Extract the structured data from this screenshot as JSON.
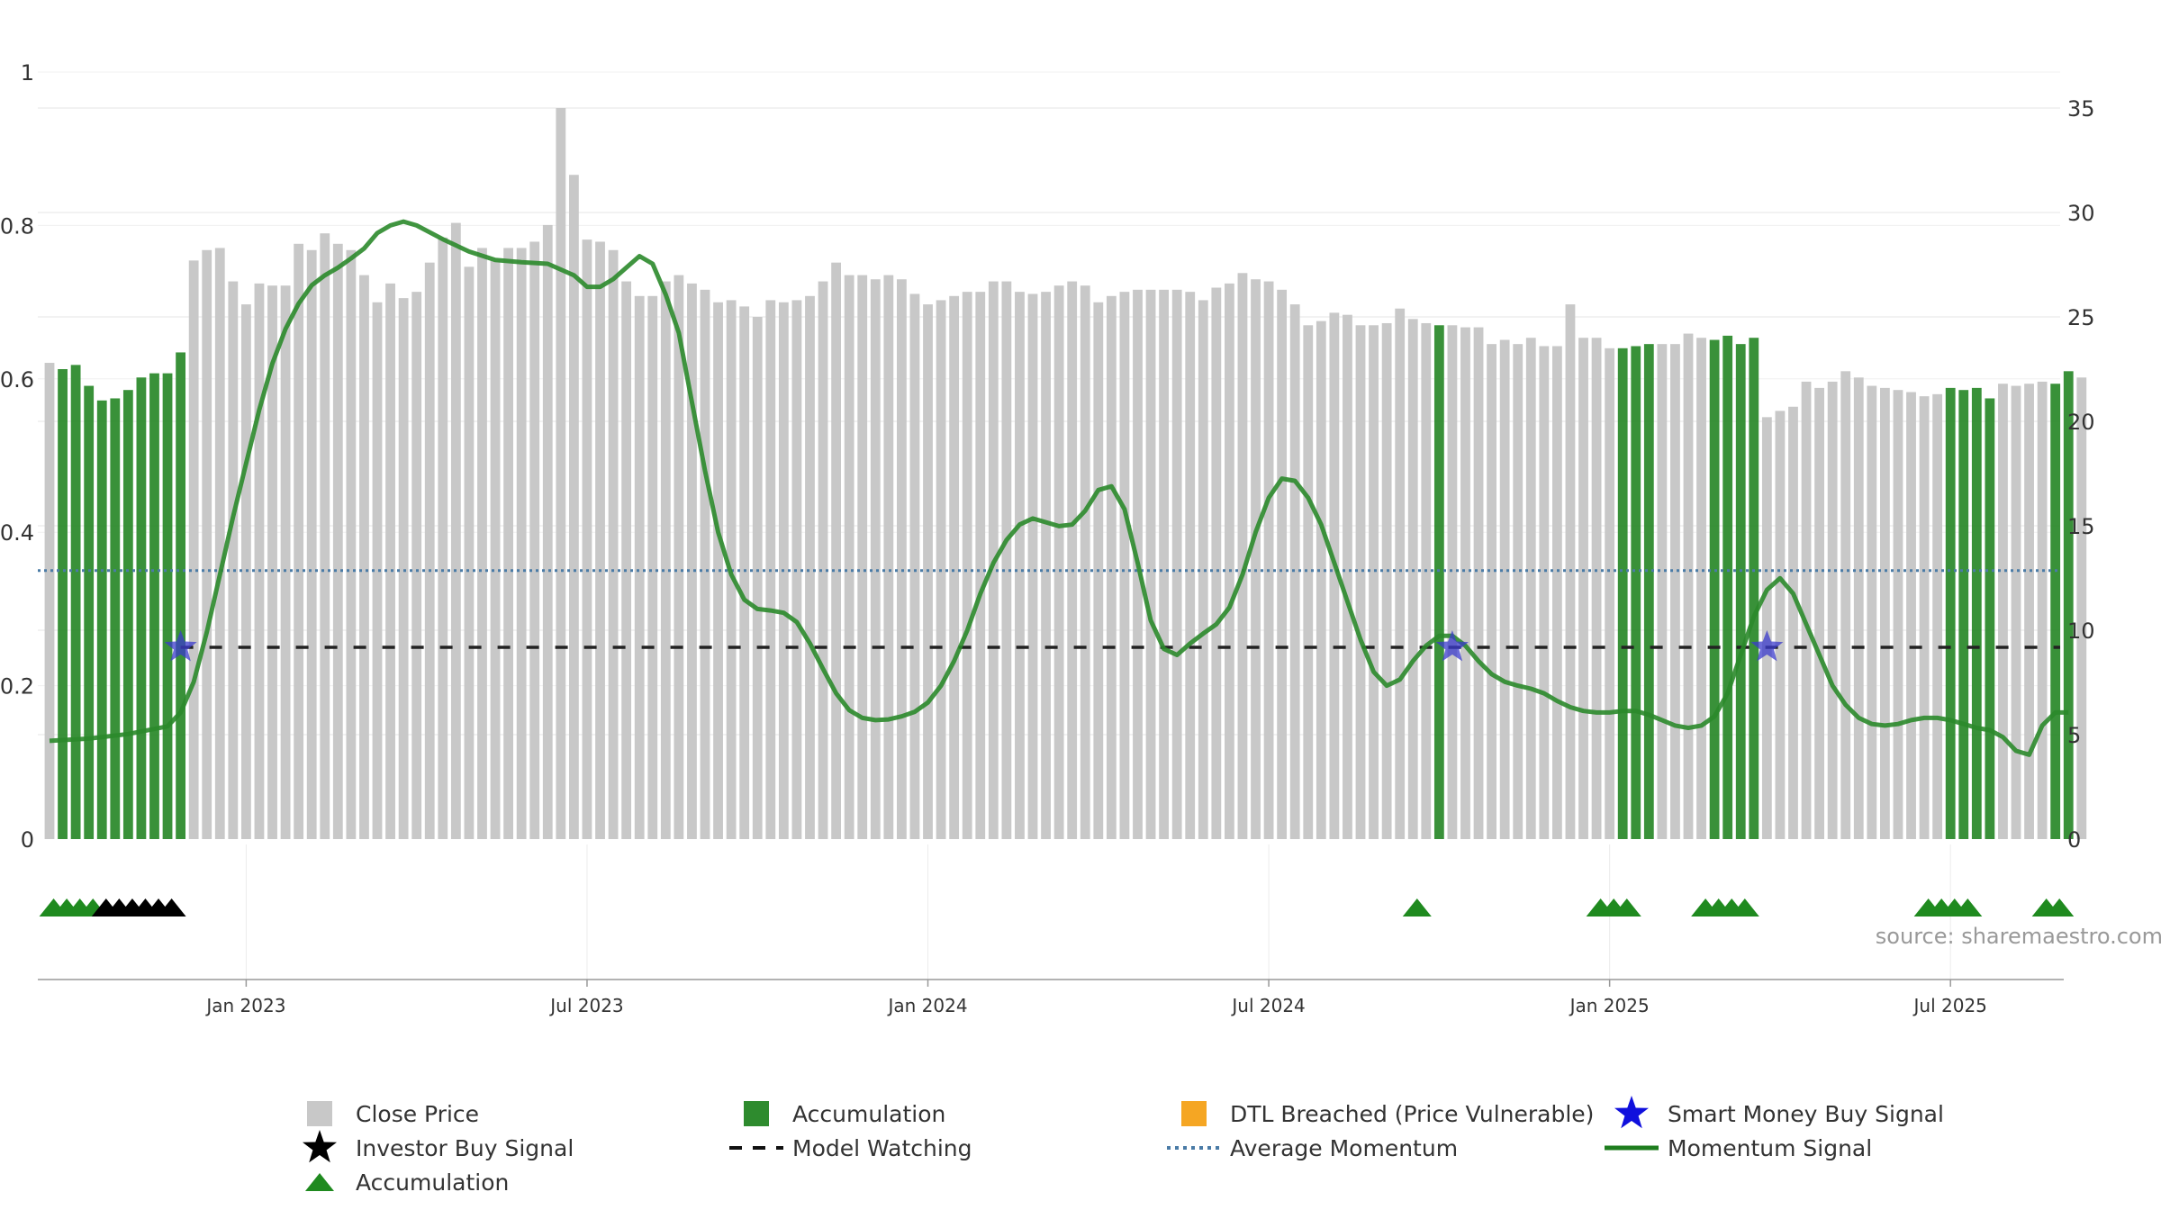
{
  "chart_data": {
    "type": "bar",
    "title": "",
    "left_axis": {
      "min": 0,
      "max": 1,
      "ticks": [
        0,
        0.2,
        0.4,
        0.6,
        0.8,
        1
      ],
      "tick_labels": [
        "0",
        "0.2",
        "0.4",
        "0.6",
        "0.8",
        "1"
      ]
    },
    "right_axis": {
      "min": 0,
      "max": 35,
      "ticks": [
        0,
        5,
        10,
        15,
        20,
        25,
        30,
        35
      ],
      "tick_labels": [
        "0",
        "5",
        "10",
        "15",
        "20",
        "25",
        "30",
        "35"
      ]
    },
    "x_axis": {
      "ticks": [
        {
          "week": 15,
          "label": "Jan 2023"
        },
        {
          "week": 41,
          "label": "Jul 2023"
        },
        {
          "week": 67,
          "label": "Jan 2024"
        },
        {
          "week": 93,
          "label": "Jul 2024"
        },
        {
          "week": 119,
          "label": "Jan 2025"
        },
        {
          "week": 145,
          "label": "Jul 2025"
        }
      ]
    },
    "close_price": [
      22.8,
      22.5,
      22.7,
      21.7,
      21,
      21.1,
      21.5,
      22.1,
      22.3,
      22.3,
      23.3,
      27.7,
      28.2,
      28.3,
      26.7,
      25.6,
      26.6,
      26.5,
      26.5,
      28.5,
      28.2,
      29,
      28.5,
      28.2,
      27,
      25.7,
      26.6,
      25.9,
      26.2,
      27.6,
      28.8,
      29.5,
      27.4,
      28.3,
      27.7,
      28.3,
      28.3,
      28.6,
      29.4,
      35,
      31.8,
      28.7,
      28.6,
      28.2,
      26.7,
      26,
      26,
      26.7,
      27,
      26.6,
      26.3,
      25.7,
      25.8,
      25.5,
      25,
      25.8,
      25.7,
      25.8,
      26,
      26.7,
      27.6,
      27,
      27,
      26.8,
      27,
      26.8,
      26.1,
      25.6,
      25.8,
      26,
      26.2,
      26.2,
      26.7,
      26.7,
      26.2,
      26.1,
      26.2,
      26.5,
      26.7,
      26.5,
      25.7,
      26,
      26.2,
      26.3,
      26.3,
      26.3,
      26.3,
      26.2,
      25.8,
      26.4,
      26.6,
      27.1,
      26.8,
      26.7,
      26.3,
      25.6,
      24.6,
      24.8,
      25.2,
      25.1,
      24.6,
      24.6,
      24.7,
      25.4,
      24.9,
      24.7,
      24.6,
      24.6,
      24.5,
      24.5,
      23.7,
      23.9,
      23.7,
      24,
      23.6,
      23.6,
      25.6,
      24,
      24,
      23.5,
      23.5,
      23.6,
      23.7,
      23.7,
      23.7,
      24.2,
      24,
      23.9,
      24.1,
      23.7,
      24,
      20.2,
      20.5,
      20.7,
      21.9,
      21.6,
      21.9,
      22.4,
      22.1,
      21.7,
      21.6,
      21.5,
      21.4,
      21.2,
      21.3,
      21.6,
      21.5,
      21.6,
      21.1,
      21.8,
      21.7,
      21.8,
      21.9,
      21.8,
      22.4,
      22.1
    ],
    "accumulation_weeks": [
      1,
      2,
      3,
      4,
      5,
      6,
      7,
      8,
      9,
      10,
      106,
      120,
      121,
      122,
      127,
      128,
      129,
      130,
      145,
      146,
      147,
      148,
      153,
      154
    ],
    "accumulation_markers": [
      1,
      2,
      3,
      4,
      105,
      119,
      120,
      121,
      127,
      128,
      129,
      130,
      144,
      145,
      146,
      147,
      153,
      154
    ],
    "investor_buy_markers": [
      5,
      6,
      7,
      8,
      9,
      10
    ],
    "smart_money_buy_signals": [
      {
        "week": 10,
        "value": 0.25
      },
      {
        "week": 107,
        "value": 0.25
      },
      {
        "week": 131,
        "value": 0.25
      }
    ],
    "model_watching_level": 0.25,
    "model_watching_from_week": 10,
    "average_momentum": 0.35,
    "momentum_signal": [
      [
        0,
        0.128
      ],
      [
        3,
        0.131
      ],
      [
        6,
        0.137
      ],
      [
        9,
        0.147
      ],
      [
        10,
        0.165
      ],
      [
        11,
        0.205
      ],
      [
        12,
        0.27
      ],
      [
        13,
        0.345
      ],
      [
        14,
        0.42
      ],
      [
        15,
        0.49
      ],
      [
        16,
        0.56
      ],
      [
        17,
        0.62
      ],
      [
        18,
        0.665
      ],
      [
        19,
        0.698
      ],
      [
        20,
        0.722
      ],
      [
        21,
        0.735
      ],
      [
        22,
        0.745
      ],
      [
        23,
        0.757
      ],
      [
        24,
        0.77
      ],
      [
        25,
        0.79
      ],
      [
        26,
        0.8
      ],
      [
        27,
        0.805
      ],
      [
        28,
        0.8
      ],
      [
        30,
        0.782
      ],
      [
        32,
        0.766
      ],
      [
        34,
        0.755
      ],
      [
        36,
        0.752
      ],
      [
        38,
        0.75
      ],
      [
        40,
        0.735
      ],
      [
        41,
        0.72
      ],
      [
        42,
        0.72
      ],
      [
        43,
        0.73
      ],
      [
        44,
        0.745
      ],
      [
        45,
        0.76
      ],
      [
        46,
        0.75
      ],
      [
        47,
        0.71
      ],
      [
        48,
        0.66
      ],
      [
        49,
        0.57
      ],
      [
        50,
        0.48
      ],
      [
        51,
        0.4
      ],
      [
        52,
        0.345
      ],
      [
        53,
        0.312
      ],
      [
        54,
        0.3
      ],
      [
        55,
        0.298
      ],
      [
        56,
        0.295
      ],
      [
        57,
        0.283
      ],
      [
        58,
        0.255
      ],
      [
        59,
        0.222
      ],
      [
        60,
        0.19
      ],
      [
        61,
        0.168
      ],
      [
        62,
        0.158
      ],
      [
        63,
        0.155
      ],
      [
        64,
        0.156
      ],
      [
        65,
        0.16
      ],
      [
        66,
        0.166
      ],
      [
        67,
        0.178
      ],
      [
        68,
        0.2
      ],
      [
        69,
        0.232
      ],
      [
        70,
        0.272
      ],
      [
        71,
        0.32
      ],
      [
        72,
        0.36
      ],
      [
        73,
        0.39
      ],
      [
        74,
        0.41
      ],
      [
        75,
        0.418
      ],
      [
        76,
        0.413
      ],
      [
        77,
        0.408
      ],
      [
        78,
        0.41
      ],
      [
        79,
        0.428
      ],
      [
        80,
        0.455
      ],
      [
        81,
        0.46
      ],
      [
        82,
        0.43
      ],
      [
        83,
        0.36
      ],
      [
        84,
        0.285
      ],
      [
        85,
        0.248
      ],
      [
        86,
        0.24
      ],
      [
        87,
        0.255
      ],
      [
        88,
        0.268
      ],
      [
        89,
        0.28
      ],
      [
        90,
        0.302
      ],
      [
        91,
        0.345
      ],
      [
        92,
        0.4
      ],
      [
        93,
        0.445
      ],
      [
        94,
        0.47
      ],
      [
        95,
        0.467
      ],
      [
        96,
        0.445
      ],
      [
        97,
        0.41
      ],
      [
        98,
        0.36
      ],
      [
        99,
        0.31
      ],
      [
        100,
        0.26
      ],
      [
        101,
        0.218
      ],
      [
        102,
        0.2
      ],
      [
        103,
        0.208
      ],
      [
        104,
        0.232
      ],
      [
        105,
        0.252
      ],
      [
        106,
        0.265
      ],
      [
        107,
        0.265
      ],
      [
        108,
        0.252
      ],
      [
        109,
        0.232
      ],
      [
        110,
        0.215
      ],
      [
        111,
        0.205
      ],
      [
        112,
        0.2
      ],
      [
        113,
        0.196
      ],
      [
        114,
        0.19
      ],
      [
        115,
        0.18
      ],
      [
        116,
        0.172
      ],
      [
        117,
        0.167
      ],
      [
        118,
        0.165
      ],
      [
        119,
        0.165
      ],
      [
        120,
        0.167
      ],
      [
        121,
        0.167
      ],
      [
        122,
        0.162
      ],
      [
        123,
        0.155
      ],
      [
        124,
        0.148
      ],
      [
        125,
        0.145
      ],
      [
        126,
        0.148
      ],
      [
        127,
        0.16
      ],
      [
        128,
        0.19
      ],
      [
        129,
        0.24
      ],
      [
        130,
        0.29
      ],
      [
        131,
        0.325
      ],
      [
        132,
        0.34
      ],
      [
        133,
        0.32
      ],
      [
        134,
        0.28
      ],
      [
        135,
        0.24
      ],
      [
        136,
        0.2
      ],
      [
        137,
        0.175
      ],
      [
        138,
        0.158
      ],
      [
        139,
        0.15
      ],
      [
        140,
        0.148
      ],
      [
        141,
        0.15
      ],
      [
        142,
        0.155
      ],
      [
        143,
        0.158
      ],
      [
        144,
        0.158
      ],
      [
        145,
        0.155
      ],
      [
        146,
        0.15
      ],
      [
        147,
        0.145
      ],
      [
        148,
        0.142
      ],
      [
        149,
        0.133
      ],
      [
        150,
        0.115
      ],
      [
        151,
        0.11
      ],
      [
        152,
        0.148
      ],
      [
        153,
        0.165
      ],
      [
        154,
        0.165
      ]
    ],
    "legend": [
      {
        "key": "close",
        "label": "Close Price"
      },
      {
        "key": "acc_bar",
        "label": "Accumulation"
      },
      {
        "key": "dtl",
        "label": "DTL Breached (Price Vulnerable)"
      },
      {
        "key": "smart",
        "label": "Smart Money Buy Signal"
      },
      {
        "key": "investor",
        "label": "Investor Buy Signal"
      },
      {
        "key": "watch",
        "label": "Model Watching"
      },
      {
        "key": "avg",
        "label": "Average Momentum"
      },
      {
        "key": "momentum",
        "label": "Momentum Signal"
      },
      {
        "key": "acc_tri",
        "label": "Accumulation"
      }
    ],
    "source_note": "source: sharemaestro.com"
  },
  "colors": {
    "close": "#c8c8c8",
    "accumulation": "#2e8b2e",
    "accumulation_marker": "#1f8a1f",
    "investor": "#000000",
    "smart": "#3b3bcc",
    "watch": "#222222",
    "avg": "#4a7ba6",
    "momentum": "#2b8a2b",
    "dtl": "#f5a623"
  }
}
